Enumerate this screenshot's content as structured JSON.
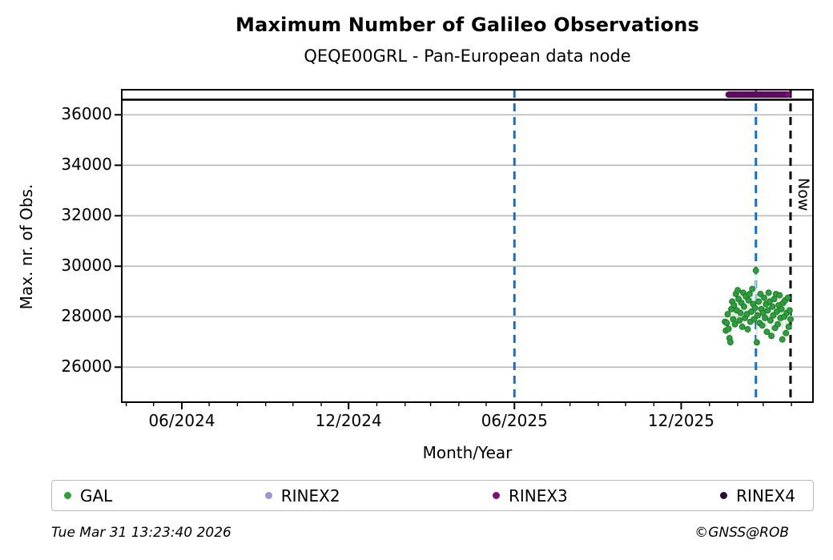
{
  "header": {
    "title": "Maximum Number of Galileo Observations",
    "subtitle": "QEQE00GRL - Pan-European data node"
  },
  "footer": {
    "timestamp": "Tue Mar 31 13:23:40 2026",
    "credit": "©GNSS@ROB"
  },
  "legend": {
    "items": [
      {
        "label": "GAL",
        "color": "#2f9e3d"
      },
      {
        "label": "RINEX2",
        "color": "#9b97cd"
      },
      {
        "label": "RINEX3",
        "color": "#7d107d"
      },
      {
        "label": "RINEX4",
        "color": "#290b33"
      }
    ]
  },
  "chart_data": {
    "type": "scatter",
    "title": "Maximum Number of Galileo Observations",
    "subtitle": "QEQE00GRL - Pan-European data node",
    "xlabel": "Month/Year",
    "ylabel": "Max. nr. of Obs.",
    "ylim": [
      24600,
      37000
    ],
    "xlim_dates": [
      "2024-03-27",
      "2026-04-24"
    ],
    "grid": "horizontal-only",
    "yticks": [
      26000,
      28000,
      30000,
      32000,
      34000,
      36000
    ],
    "xticks": [
      {
        "label": "06/2024",
        "date": "2024-06-01"
      },
      {
        "label": "12/2024",
        "date": "2024-12-01"
      },
      {
        "label": "06/2025",
        "date": "2025-06-01"
      },
      {
        "label": "12/2025",
        "date": "2025-12-01"
      }
    ],
    "minor_xticks": "monthly",
    "reference_lines": {
      "max_hline": {
        "value": 36600,
        "color": "#000000",
        "style": "solid"
      },
      "vlines": [
        {
          "date": "2025-06-01",
          "color": "#1a6fba",
          "style": "dashed"
        },
        {
          "date": "2026-02-21",
          "color": "#1a6fba",
          "style": "dashed"
        }
      ],
      "now_line": {
        "date": "2026-03-31",
        "color": "#000000",
        "style": "dashed",
        "label": "Now"
      }
    },
    "series": [
      {
        "name": "GAL",
        "color": "#2f9e3d",
        "edge_color": "#1e7c2c",
        "start_date": "2026-01-18",
        "cadence_days": 1,
        "values": [
          27800,
          27450,
          27750,
          28100,
          27520,
          27150,
          26990,
          28300,
          28600,
          27900,
          28450,
          27700,
          28900,
          28250,
          29050,
          28700,
          27850,
          28150,
          28550,
          27600,
          28950,
          28400,
          27950,
          28800,
          28100,
          27500,
          28650,
          28900,
          27800,
          28200,
          29100,
          28500,
          27900,
          28350,
          29830,
          26980,
          28050,
          28600,
          27750,
          28900,
          28300,
          27650,
          28150,
          28750,
          27950,
          28500,
          27400,
          28250,
          28950,
          28600,
          27850,
          27240,
          28400,
          28050,
          28700,
          27550,
          28900,
          28200,
          27700,
          28450,
          28850,
          27950,
          28300,
          27100,
          28550,
          28000,
          28650,
          27350,
          28150,
          28750,
          27600,
          28250,
          27900
        ]
      },
      {
        "name": "RINEX2",
        "color": "#9b97cd",
        "values": []
      },
      {
        "name": "RINEX3",
        "color": "#7d107d",
        "edge_color": "#5a0b5a",
        "start_date": "2026-01-22",
        "end_date": "2026-03-28",
        "cadence_days": 1,
        "constant_value": 36800
      },
      {
        "name": "RINEX4",
        "color": "#290b33",
        "values": []
      }
    ]
  },
  "now_label": "Now"
}
